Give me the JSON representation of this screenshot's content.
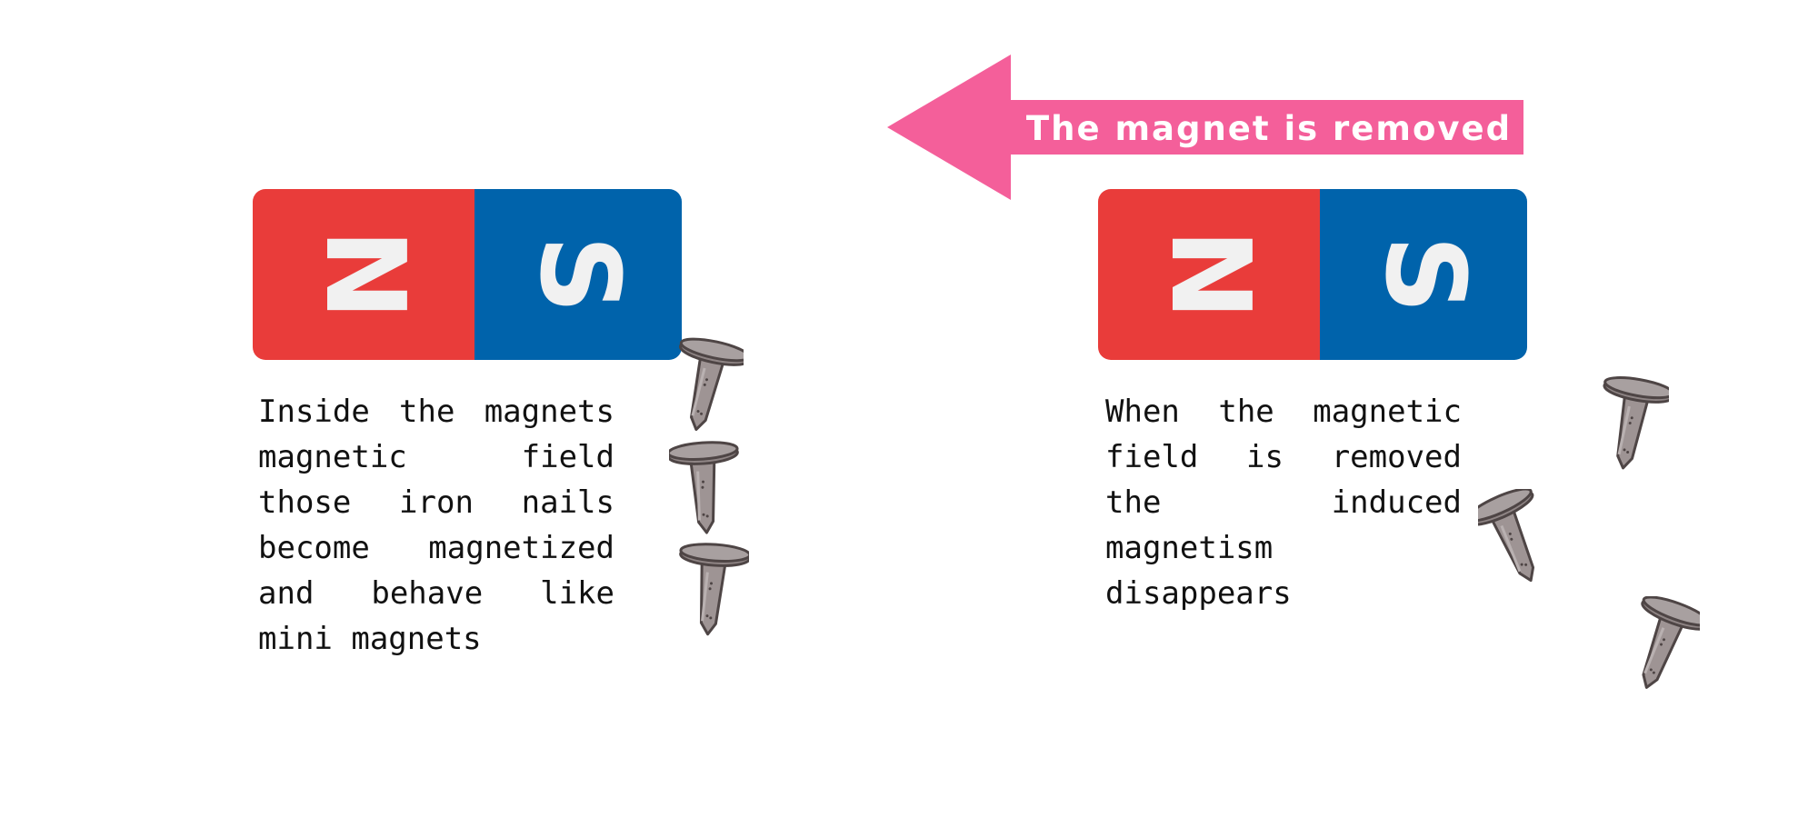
{
  "banner": {
    "label": "The magnet is removed",
    "color": "#f45f9a"
  },
  "magnets": [
    {
      "north_label": "N",
      "south_label": "S",
      "north_color": "#e93c3a",
      "south_color": "#0063ab"
    },
    {
      "north_label": "N",
      "south_label": "S",
      "north_color": "#e93c3a",
      "south_color": "#0063ab"
    }
  ],
  "captions": {
    "left": "Inside the magnets magnetic field those iron nails become magnetized and behave like mini magnets",
    "right": "When the magnetic field is removed the induced magnetism disappears"
  },
  "nail_color": "#9e9494",
  "icons": [
    "arrow-left-icon",
    "bar-magnet-icon",
    "iron-nail-icon"
  ]
}
